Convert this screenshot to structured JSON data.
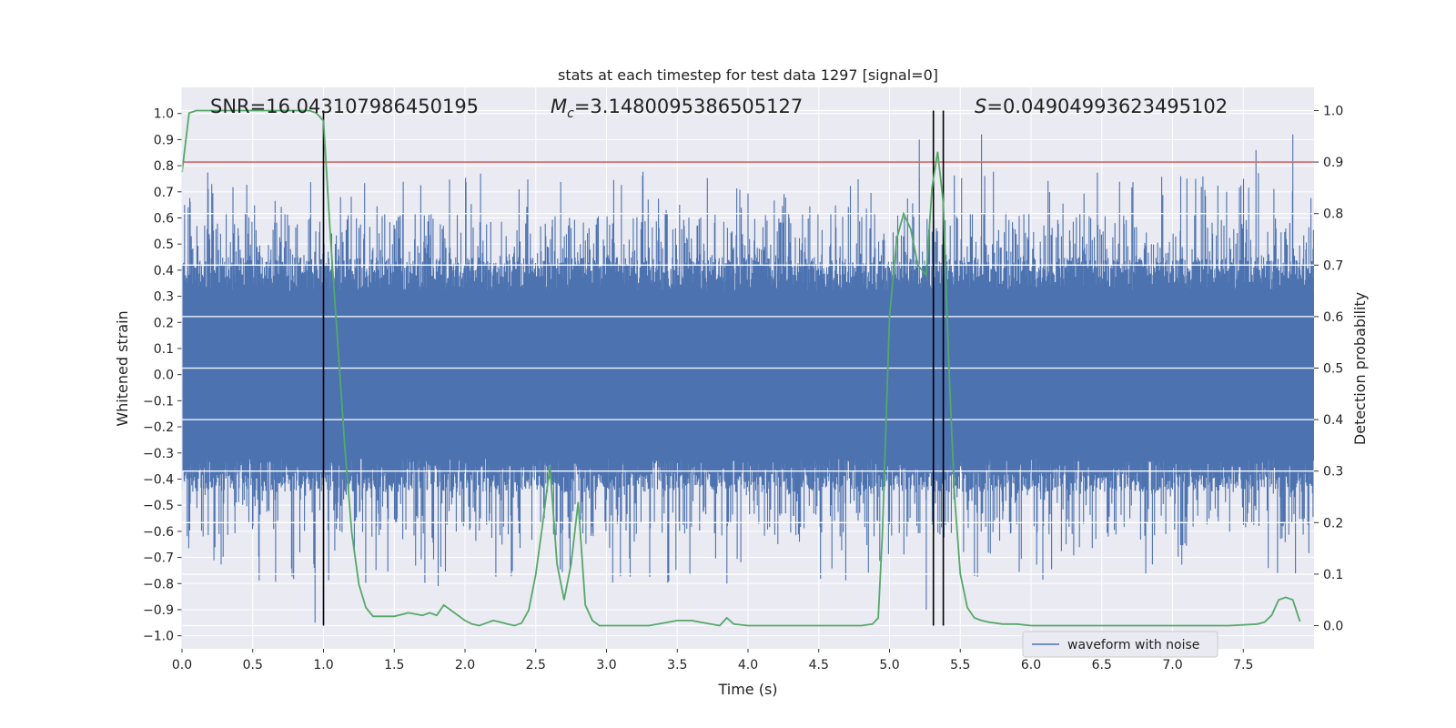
{
  "chart_data": {
    "type": "line",
    "title": "stats at each timestep for test data 1297 [signal=0]",
    "xlabel": "Time (s)",
    "ylabel": "Whitened strain",
    "y2label": "Detection probability",
    "xlim": [
      0.0,
      8.0
    ],
    "ylim": [
      -1.05,
      1.1
    ],
    "y2lim": [
      -0.045,
      1.045
    ],
    "xticks": [
      "0.0",
      "0.5",
      "1.0",
      "1.5",
      "2.0",
      "2.5",
      "3.0",
      "3.5",
      "4.0",
      "4.5",
      "5.0",
      "5.5",
      "6.0",
      "6.5",
      "7.0",
      "7.5"
    ],
    "yticks": [
      "1.0",
      "0.9",
      "0.8",
      "0.7",
      "0.6",
      "0.5",
      "0.4",
      "0.3",
      "0.2",
      "0.1",
      "0.0",
      "-0.1",
      "-0.2",
      "-0.3",
      "-0.4",
      "-0.5",
      "-0.6",
      "-0.7",
      "-0.8",
      "-0.9",
      "-1.0"
    ],
    "y2ticks": [
      "1.0",
      "0.9",
      "0.8",
      "0.7",
      "0.6",
      "0.5",
      "0.4",
      "0.3",
      "0.2",
      "0.1",
      "0.0"
    ],
    "annotations": {
      "snr": "SNR=16.043107986450195",
      "mc_symbol": "M",
      "mc_sub": "c",
      "mc_value": "=3.1480095386505127",
      "s_symbol": "S",
      "s_value": "=0.04904993623495102"
    },
    "threshold": {
      "value": 0.9,
      "axis": "y2",
      "color": "#c44e52"
    },
    "vertical_markers": [
      1.0,
      5.31,
      5.38
    ],
    "series": [
      {
        "name": "waveform with noise",
        "axis": "y",
        "color": "#4c72b0",
        "style": "dense noise band",
        "band_core": [
          -0.32,
          0.32
        ],
        "notable_peaks": [
          [
            0.94,
            -0.95
          ],
          [
            0.21,
            0.73
          ],
          [
            2.11,
            0.77
          ],
          [
            5.21,
            0.9
          ],
          [
            5.26,
            -0.9
          ],
          [
            5.65,
            0.92
          ],
          [
            7.85,
            0.92
          ],
          [
            7.59,
            0.86
          ],
          [
            1.81,
            -0.81
          ]
        ]
      },
      {
        "name": "detection probability",
        "axis": "y2",
        "color": "#55a868",
        "x": [
          0.0,
          0.05,
          0.1,
          0.2,
          0.3,
          0.4,
          0.5,
          0.6,
          0.7,
          0.8,
          0.9,
          0.95,
          1.0,
          1.05,
          1.1,
          1.15,
          1.2,
          1.25,
          1.3,
          1.35,
          1.4,
          1.5,
          1.6,
          1.7,
          1.75,
          1.8,
          1.85,
          1.95,
          2.0,
          2.05,
          2.1,
          2.15,
          2.2,
          2.25,
          2.3,
          2.35,
          2.4,
          2.45,
          2.5,
          2.55,
          2.6,
          2.65,
          2.7,
          2.75,
          2.8,
          2.85,
          2.9,
          2.95,
          3.0,
          3.05,
          3.1,
          3.2,
          3.3,
          3.4,
          3.5,
          3.6,
          3.7,
          3.8,
          3.85,
          3.9,
          4.0,
          4.2,
          4.4,
          4.6,
          4.8,
          4.88,
          4.92,
          4.95,
          5.0,
          5.05,
          5.1,
          5.15,
          5.2,
          5.26,
          5.3,
          5.34,
          5.38,
          5.42,
          5.46,
          5.5,
          5.55,
          5.6,
          5.65,
          5.7,
          5.8,
          5.9,
          6.0,
          6.2,
          6.4,
          6.6,
          6.8,
          7.0,
          7.2,
          7.4,
          7.6,
          7.65,
          7.7,
          7.75,
          7.8,
          7.85,
          7.9
        ],
        "values": [
          0.88,
          0.995,
          1.0,
          1.0,
          1.0,
          1.0,
          1.0,
          1.0,
          1.0,
          1.0,
          1.0,
          0.995,
          0.98,
          0.75,
          0.55,
          0.35,
          0.18,
          0.08,
          0.035,
          0.018,
          0.018,
          0.018,
          0.025,
          0.02,
          0.025,
          0.02,
          0.04,
          0.02,
          0.01,
          0.003,
          0.0,
          0.005,
          0.01,
          0.007,
          0.003,
          0.0,
          0.005,
          0.03,
          0.1,
          0.2,
          0.31,
          0.12,
          0.05,
          0.12,
          0.24,
          0.04,
          0.01,
          0.0,
          0.0,
          0.0,
          0.0,
          0.0,
          0.0,
          0.005,
          0.01,
          0.01,
          0.005,
          0.0,
          0.015,
          0.003,
          0.0,
          0.0,
          0.0,
          0.0,
          0.0,
          0.003,
          0.015,
          0.18,
          0.6,
          0.75,
          0.8,
          0.77,
          0.7,
          0.68,
          0.85,
          0.92,
          0.82,
          0.5,
          0.25,
          0.1,
          0.035,
          0.015,
          0.01,
          0.007,
          0.003,
          0.003,
          0.0,
          0.0,
          0.0,
          0.0,
          0.0,
          0.0,
          0.0,
          0.0,
          0.003,
          0.007,
          0.02,
          0.05,
          0.055,
          0.05,
          0.008
        ]
      }
    ],
    "legend": {
      "position": "lower-right",
      "entries": [
        "waveform with noise"
      ]
    }
  }
}
